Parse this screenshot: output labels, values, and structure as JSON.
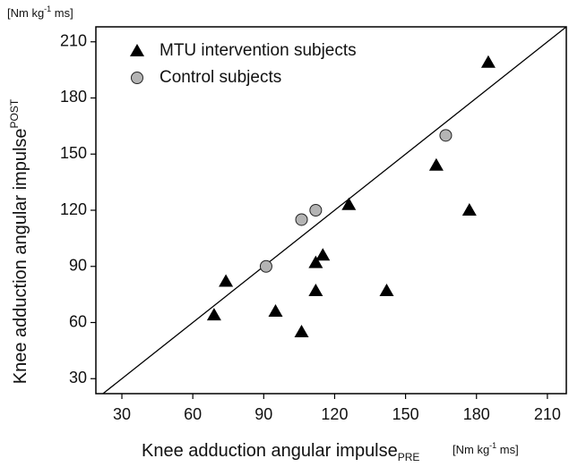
{
  "chart_data": {
    "type": "scatter",
    "x_label": "Knee adduction angular impulse",
    "x_label_sub": "PRE",
    "x_unit": [
      "[Nm kg",
      "-1",
      " ms]"
    ],
    "y_label": "Knee adduction angular impulse",
    "y_label_sub": "POST",
    "y_unit": [
      "[Nm kg",
      "-1",
      " ms]"
    ],
    "xlim": [
      19,
      218
    ],
    "ylim": [
      22,
      218
    ],
    "xticks": [
      30,
      60,
      90,
      120,
      150,
      180,
      210
    ],
    "yticks": [
      30,
      60,
      90,
      120,
      150,
      180,
      210
    ],
    "identity_line": true,
    "legend": "upper left",
    "series": [
      {
        "name": "MTU intervention subjects",
        "color": "#000000",
        "marker": "triangle",
        "x": [
          69,
          74,
          95,
          106,
          112,
          112,
          115,
          126,
          142,
          163,
          177,
          185
        ],
        "values": [
          64,
          82,
          66,
          55,
          77,
          92,
          96,
          123,
          77,
          144,
          120,
          199
        ]
      },
      {
        "name": "Control subjects",
        "color": "#b4b4b4",
        "marker": "circle",
        "x": [
          91,
          106,
          112,
          167
        ],
        "values": [
          90,
          115,
          120,
          160
        ]
      }
    ]
  }
}
